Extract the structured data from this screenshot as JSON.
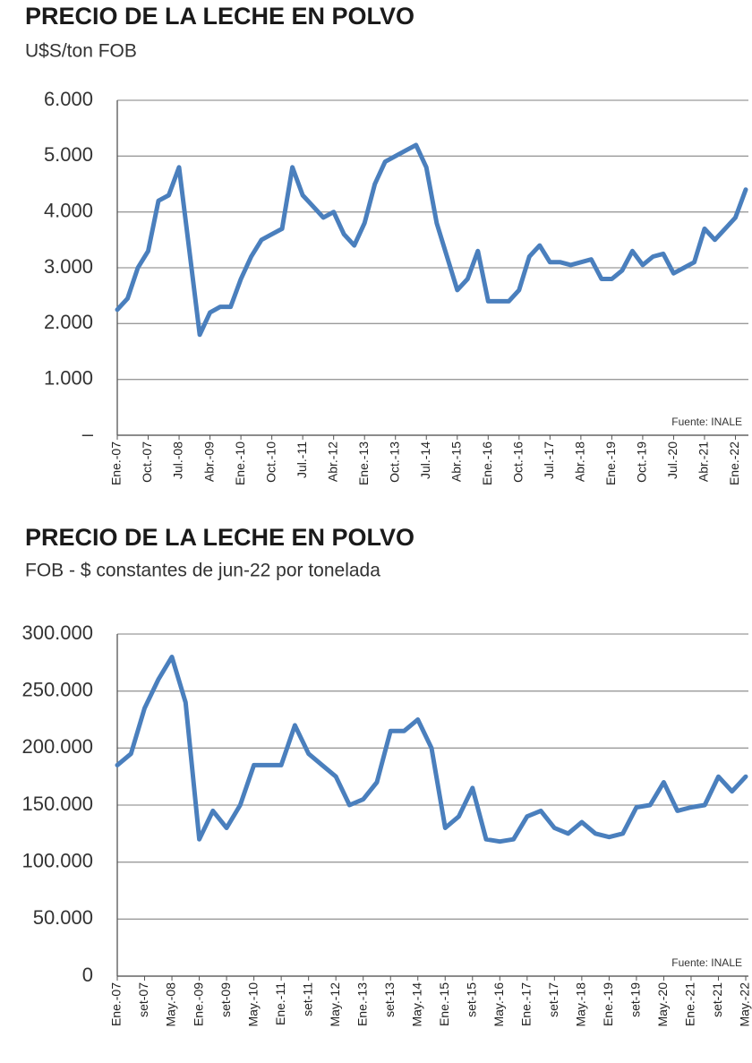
{
  "chart_data": [
    {
      "type": "line",
      "title": "PRECIO DE LA LECHE EN POLVO",
      "subtitle": "U$S/ton FOB",
      "source": "Fuente: INALE",
      "color": "#4a7fbd",
      "grid": true,
      "categories": [
        "Ene.-07",
        null,
        null,
        "Oct.-07",
        null,
        null,
        "Jul.-08",
        null,
        null,
        "Abr.-09",
        null,
        null,
        "Ene.-10",
        null,
        null,
        "Oct.-10",
        null,
        null,
        "Jul.-11",
        null,
        null,
        "Abr.-12",
        null,
        null,
        "Ene.-13",
        null,
        null,
        "Oct.-13",
        null,
        null,
        "Jul.-14",
        null,
        null,
        "Abr.-15",
        null,
        null,
        "Ene.-16",
        null,
        null,
        "Oct.-16",
        null,
        null,
        "Jul.-17",
        null,
        null,
        "Abr.-18",
        null,
        null,
        "Ene.-19",
        null,
        null,
        "Oct.-19",
        null,
        null,
        "Jul.-20",
        null,
        null,
        "Abr.-21",
        null,
        null,
        "Ene.-22",
        null
      ],
      "values": [
        2250,
        2450,
        3000,
        3300,
        4200,
        4300,
        4800,
        3300,
        1800,
        2200,
        2300,
        2300,
        2800,
        3200,
        3500,
        3600,
        3700,
        4800,
        4300,
        4100,
        3900,
        4000,
        3600,
        3400,
        3800,
        4500,
        4900,
        5000,
        5100,
        5200,
        4800,
        3800,
        3200,
        2600,
        2800,
        3300,
        2400,
        2400,
        2400,
        2600,
        3200,
        3400,
        3100,
        3100,
        3050,
        3100,
        3150,
        2800,
        2800,
        2950,
        3300,
        3050,
        3200,
        3250,
        2900,
        3000,
        3100,
        3700,
        3500,
        3700,
        3900,
        4400
      ],
      "ylim": [
        0,
        6000
      ],
      "yticks": [
        {
          "value": 0,
          "label": "–"
        },
        {
          "value": 1000,
          "label": "1.000"
        },
        {
          "value": 2000,
          "label": "2.000"
        },
        {
          "value": 3000,
          "label": "3.000"
        },
        {
          "value": 4000,
          "label": "4.000"
        },
        {
          "value": 5000,
          "label": "5.000"
        },
        {
          "value": 6000,
          "label": "6.000"
        }
      ]
    },
    {
      "type": "line",
      "title": "PRECIO DE LA LECHE EN POLVO",
      "subtitle": "FOB - $ constantes de jun-22 por tonelada",
      "source": "Fuente: INALE",
      "color": "#4a7fbd",
      "grid": true,
      "categories": [
        "Ene.-07",
        null,
        "set-07",
        null,
        "May.-08",
        null,
        "Ene.-09",
        null,
        "set-09",
        null,
        "May.-10",
        null,
        "Ene.-11",
        null,
        "set-11",
        null,
        "May.-12",
        null,
        "Ene.-13",
        null,
        "set-13",
        null,
        "May.-14",
        null,
        "Ene.-15",
        null,
        "set-15",
        null,
        "May.-16",
        null,
        "Ene.-17",
        null,
        "set-17",
        null,
        "May.-18",
        null,
        "Ene.-19",
        null,
        "set-19",
        null,
        "May.-20",
        null,
        "Ene.-21",
        null,
        "set-21",
        null,
        "May.-22"
      ],
      "values": [
        185000,
        195000,
        235000,
        260000,
        280000,
        240000,
        120000,
        145000,
        130000,
        150000,
        185000,
        185000,
        185000,
        220000,
        195000,
        185000,
        175000,
        150000,
        155000,
        170000,
        215000,
        215000,
        225000,
        200000,
        130000,
        140000,
        165000,
        120000,
        118000,
        120000,
        140000,
        145000,
        130000,
        125000,
        135000,
        125000,
        122000,
        125000,
        148000,
        150000,
        170000,
        145000,
        148000,
        150000,
        175000,
        162000,
        175000
      ],
      "ylim": [
        0,
        300000
      ],
      "yticks": [
        0,
        {
          "value": 50000,
          "label": "50.000"
        },
        {
          "value": 100000,
          "label": "100.000"
        },
        {
          "value": 150000,
          "label": "150.000"
        },
        {
          "value": 200000,
          "label": "200.000"
        },
        {
          "value": 250000,
          "label": "250.000"
        },
        {
          "value": 300000,
          "label": "300.000"
        }
      ]
    }
  ]
}
